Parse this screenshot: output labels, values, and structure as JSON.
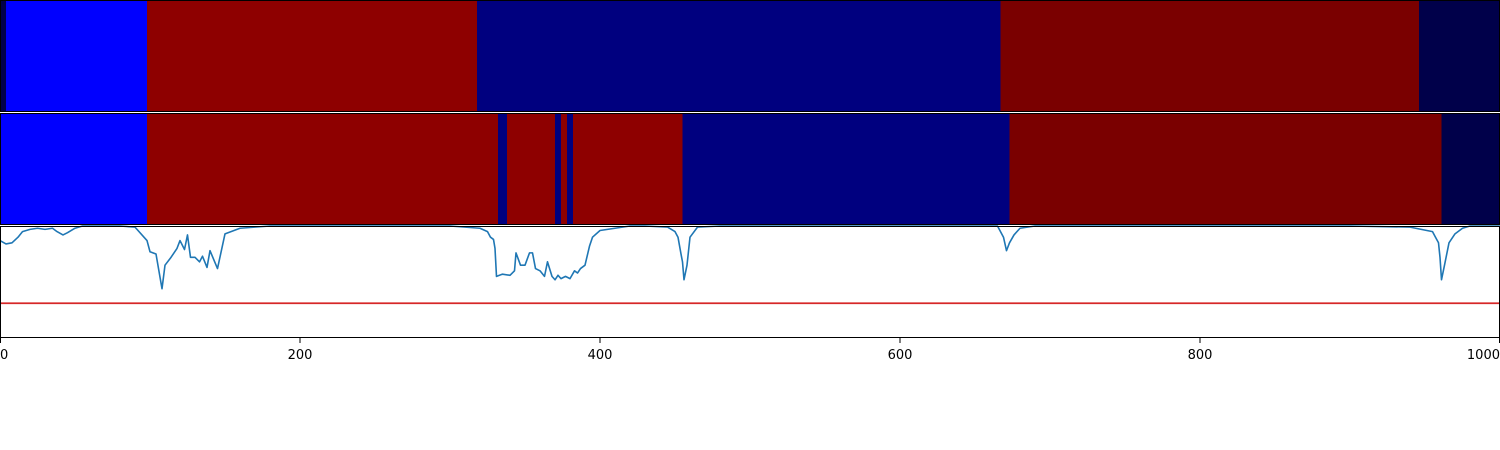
{
  "chart_data": [
    {
      "type": "heatmap",
      "xlim": [
        0,
        1000
      ],
      "segments": [
        {
          "start": 0,
          "end": 4,
          "color": "#00004a"
        },
        {
          "start": 4,
          "end": 98,
          "color": "#0000ff"
        },
        {
          "start": 98,
          "end": 318,
          "color": "#8e0000"
        },
        {
          "start": 318,
          "end": 667,
          "color": "#00007f"
        },
        {
          "start": 667,
          "end": 946,
          "color": "#7a0000"
        },
        {
          "start": 946,
          "end": 1000,
          "color": "#00004a"
        }
      ]
    },
    {
      "type": "heatmap",
      "xlim": [
        0,
        1000
      ],
      "segments": [
        {
          "start": 0,
          "end": 98,
          "color": "#0000ff"
        },
        {
          "start": 98,
          "end": 332,
          "color": "#8e0000"
        },
        {
          "start": 332,
          "end": 338,
          "color": "#00007f"
        },
        {
          "start": 338,
          "end": 370,
          "color": "#8e0000"
        },
        {
          "start": 370,
          "end": 374,
          "color": "#00007f"
        },
        {
          "start": 374,
          "end": 378,
          "color": "#8e0000"
        },
        {
          "start": 378,
          "end": 382,
          "color": "#00007f"
        },
        {
          "start": 382,
          "end": 455,
          "color": "#8e0000"
        },
        {
          "start": 455,
          "end": 673,
          "color": "#00007f"
        },
        {
          "start": 673,
          "end": 961,
          "color": "#7a0000"
        },
        {
          "start": 961,
          "end": 1000,
          "color": "#00004a"
        }
      ]
    },
    {
      "type": "line",
      "xlim": [
        0,
        1000
      ],
      "ylim": [
        0,
        1
      ],
      "xticks": [
        0,
        200,
        400,
        600,
        800,
        1000
      ],
      "xtick_labels": [
        "0",
        "200",
        "400",
        "600",
        "800",
        "1000"
      ],
      "threshold": {
        "value": 0.31,
        "color": "#d62728"
      },
      "series": [
        {
          "color": "#1f77b4",
          "x": [
            0,
            4,
            8,
            12,
            15,
            20,
            25,
            30,
            35,
            38,
            42,
            45,
            50,
            55,
            60,
            65,
            70,
            80,
            90,
            98,
            100,
            104,
            108,
            110,
            114,
            118,
            120,
            123,
            125,
            127,
            130,
            133,
            135,
            138,
            140,
            145,
            150,
            160,
            170,
            180,
            200,
            250,
            300,
            320,
            325,
            327,
            329,
            330,
            331,
            335,
            340,
            343,
            344,
            347,
            350,
            353,
            355,
            357,
            360,
            363,
            365,
            368,
            370,
            372,
            374,
            377,
            380,
            383,
            385,
            387,
            390,
            393,
            395,
            400,
            410,
            420,
            430,
            445,
            450,
            452,
            454,
            455,
            456,
            458,
            460,
            465,
            480,
            500,
            550,
            600,
            650,
            665,
            667,
            669,
            671,
            673,
            676,
            680,
            690,
            700,
            800,
            900,
            940,
            955,
            957,
            959,
            960,
            961,
            963,
            966,
            970,
            975,
            980,
            990,
            1000
          ],
          "y": [
            0.87,
            0.84,
            0.85,
            0.9,
            0.95,
            0.97,
            0.98,
            0.97,
            0.98,
            0.95,
            0.92,
            0.94,
            0.98,
            1.0,
            1.0,
            1.0,
            1.0,
            1.0,
            0.99,
            0.87,
            0.77,
            0.75,
            0.44,
            0.65,
            0.72,
            0.8,
            0.87,
            0.79,
            0.92,
            0.72,
            0.72,
            0.68,
            0.73,
            0.63,
            0.78,
            0.62,
            0.93,
            0.98,
            0.99,
            1.0,
            1.0,
            1.0,
            1.0,
            0.98,
            0.95,
            0.9,
            0.88,
            0.8,
            0.55,
            0.57,
            0.56,
            0.6,
            0.76,
            0.65,
            0.65,
            0.76,
            0.76,
            0.62,
            0.6,
            0.55,
            0.68,
            0.55,
            0.52,
            0.56,
            0.53,
            0.55,
            0.53,
            0.6,
            0.58,
            0.62,
            0.65,
            0.82,
            0.9,
            0.96,
            0.98,
            1.0,
            1.0,
            0.99,
            0.95,
            0.9,
            0.75,
            0.68,
            0.52,
            0.65,
            0.9,
            0.99,
            1.0,
            1.0,
            1.0,
            1.0,
            1.0,
            1.0,
            0.95,
            0.9,
            0.78,
            0.85,
            0.92,
            0.98,
            1.0,
            1.0,
            1.0,
            1.0,
            0.99,
            0.95,
            0.9,
            0.85,
            0.72,
            0.52,
            0.65,
            0.85,
            0.93,
            0.98,
            1.0,
            1.0,
            1.0
          ]
        }
      ]
    }
  ]
}
